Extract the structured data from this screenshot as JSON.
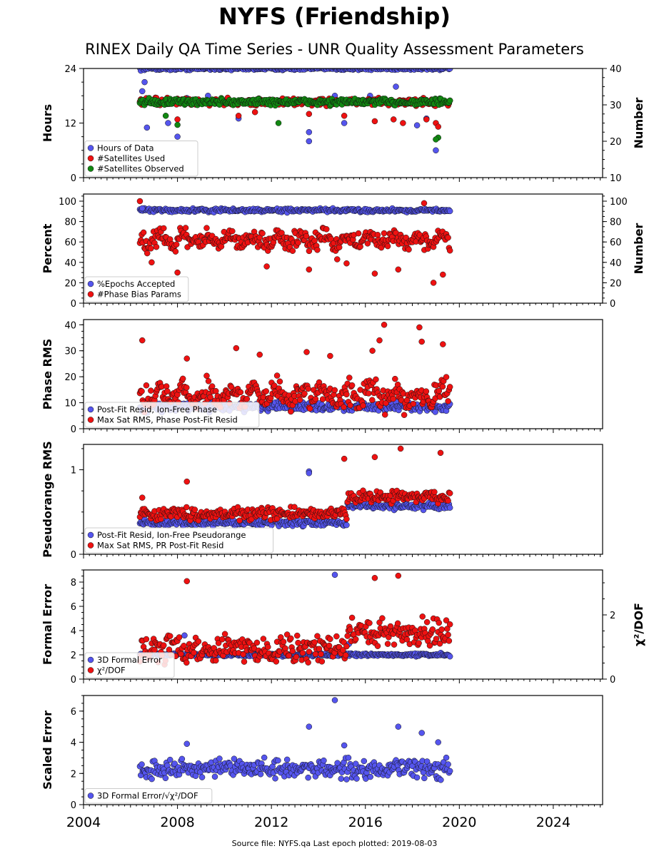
{
  "header": {
    "title": "NYFS (Friendship)",
    "subtitle": "RINEX Daily QA Time Series - UNR Quality Assessment Parameters"
  },
  "footer": {
    "text": "Source file: NYFS.qa Last epoch plotted: 2019-08-03"
  },
  "colors": {
    "blue": "#5555ee",
    "red": "#ee1111",
    "green": "#118811",
    "edge": "#111111"
  },
  "chart_data": [
    {
      "type": "scatter",
      "ylabel": "Hours",
      "y2label": "Number",
      "xlim": [
        2004,
        2026.1
      ],
      "ylim": [
        0,
        24
      ],
      "yticks": [
        "0",
        "12",
        "24"
      ],
      "y2lim": [
        10,
        40
      ],
      "y2ticks": [
        "10",
        "20",
        "30",
        "40"
      ],
      "x_tick_labels_visible": false,
      "legend": "lower-left",
      "legend_entries": [
        "Hours of Data",
        "#Satellites Used",
        "#Satellites Observed"
      ],
      "series": [
        {
          "name": "Hours of Data",
          "color": "blue",
          "axis": "left",
          "x_range": [
            2006.4,
            2019.6
          ],
          "typical": 24.0,
          "spread": 0.3,
          "outliers": [
            [
              2006.4,
              16.5
            ],
            [
              2006.5,
              19.0
            ],
            [
              2006.6,
              21.0
            ],
            [
              2006.7,
              11.0
            ],
            [
              2007.6,
              12.0
            ],
            [
              2008.0,
              9.0
            ],
            [
              2008.4,
              17.5
            ],
            [
              2009.3,
              18.0
            ],
            [
              2010.6,
              13.0
            ],
            [
              2011.4,
              16.5
            ],
            [
              2013.6,
              10.0
            ],
            [
              2013.6,
              8.0
            ],
            [
              2014.7,
              18.0
            ],
            [
              2015.1,
              12.0
            ],
            [
              2016.2,
              18.0
            ],
            [
              2017.3,
              20.0
            ],
            [
              2018.2,
              11.5
            ],
            [
              2018.6,
              13.0
            ],
            [
              2019.0,
              6.0
            ],
            [
              2019.1,
              17.0
            ]
          ]
        },
        {
          "name": "#Satellites Used",
          "color": "red",
          "axis": "right",
          "x_range": [
            2006.4,
            2019.6
          ],
          "typical": 30.8,
          "spread": 0.8,
          "outliers": [
            [
              2008.0,
              26.0
            ],
            [
              2010.6,
              27.0
            ],
            [
              2011.3,
              28.0
            ],
            [
              2013.6,
              27.5
            ],
            [
              2015.1,
              27.0
            ],
            [
              2016.4,
              25.5
            ],
            [
              2017.2,
              26.0
            ],
            [
              2017.6,
              25.0
            ],
            [
              2018.6,
              26.0
            ],
            [
              2019.0,
              25.0
            ],
            [
              2019.1,
              24.0
            ]
          ]
        },
        {
          "name": "#Satellites Observed",
          "color": "green",
          "axis": "right",
          "x_range": [
            2006.4,
            2019.6
          ],
          "typical": 30.8,
          "spread": 0.8,
          "outliers": [
            [
              2007.5,
              27.0
            ],
            [
              2008.0,
              24.5
            ],
            [
              2012.3,
              25.0
            ],
            [
              2019.1,
              21.0
            ],
            [
              2019.0,
              20.5
            ]
          ]
        }
      ]
    },
    {
      "type": "scatter",
      "ylabel": "Percent",
      "y2label": "Number",
      "xlim": [
        2004,
        2026.1
      ],
      "ylim": [
        0,
        107
      ],
      "yticks": [
        "0",
        "20",
        "40",
        "60",
        "80",
        "100"
      ],
      "y2lim": [
        0,
        107
      ],
      "y2ticks": [
        "0",
        "20",
        "40",
        "60",
        "80",
        "100"
      ],
      "x_tick_labels_visible": false,
      "legend": "lower-left",
      "legend_entries": [
        "%Epochs Accepted",
        "#Phase Bias Params"
      ],
      "series": [
        {
          "name": "%Epochs Accepted",
          "color": "blue",
          "axis": "left",
          "x_range": [
            2006.4,
            2019.6
          ],
          "typical": 91.0,
          "spread": 1.5,
          "outliers": [
            [
              2006.5,
              93.0
            ]
          ]
        },
        {
          "name": "#Phase Bias Params",
          "color": "red",
          "axis": "right",
          "x_range": [
            2006.4,
            2019.6
          ],
          "typical": 62.0,
          "spread": 7.0,
          "outliers": [
            [
              2006.4,
              100.0
            ],
            [
              2006.9,
              40.0
            ],
            [
              2008.0,
              30.0
            ],
            [
              2011.8,
              36.0
            ],
            [
              2013.6,
              33.0
            ],
            [
              2014.8,
              43.0
            ],
            [
              2015.2,
              39.0
            ],
            [
              2016.4,
              29.0
            ],
            [
              2017.4,
              33.0
            ],
            [
              2018.5,
              98.0
            ],
            [
              2018.9,
              20.0
            ],
            [
              2019.3,
              28.0
            ]
          ]
        }
      ]
    },
    {
      "type": "scatter",
      "ylabel": "Phase RMS",
      "xlim": [
        2004,
        2026.1
      ],
      "ylim": [
        0,
        42
      ],
      "yticks": [
        "0",
        "10",
        "20",
        "30",
        "40"
      ],
      "x_tick_labels_visible": false,
      "legend": "lower-left",
      "legend_entries": [
        "Post-Fit Resid, Ion-Free Phase",
        "Max Sat RMS, Phase Post-Fit Resid"
      ],
      "series": [
        {
          "name": "Post-Fit Resid, Ion-Free Phase",
          "color": "blue",
          "axis": "left",
          "x_range": [
            2006.4,
            2019.6
          ],
          "typical": 8.5,
          "spread": 1.5,
          "outliers": []
        },
        {
          "name": "Max Sat RMS, Phase Post-Fit Resid",
          "color": "red",
          "axis": "left",
          "x_range": [
            2006.4,
            2019.6
          ],
          "typical": 13.0,
          "spread": 4.0,
          "outliers": [
            [
              2006.5,
              34.0
            ],
            [
              2008.4,
              27.0
            ],
            [
              2010.5,
              31.0
            ],
            [
              2011.5,
              28.5
            ],
            [
              2013.5,
              29.5
            ],
            [
              2014.5,
              28.0
            ],
            [
              2016.3,
              30.0
            ],
            [
              2016.6,
              34.0
            ],
            [
              2016.8,
              40.0
            ],
            [
              2018.3,
              39.0
            ],
            [
              2018.4,
              33.5
            ],
            [
              2019.3,
              32.5
            ]
          ]
        }
      ]
    },
    {
      "type": "scatter",
      "ylabel": "Pseudorange RMS",
      "xlim": [
        2004,
        2026.1
      ],
      "ylim": [
        0,
        1.3
      ],
      "yticks": [
        "0",
        "1"
      ],
      "x_tick_labels_visible": false,
      "legend": "lower-left",
      "legend_entries": [
        "Post-Fit Resid, Ion-Free Pseudorange",
        "Max Sat RMS, PR Post-Fit Resid"
      ],
      "series": [
        {
          "name": "Post-Fit Resid, Ion-Free Pseudorange",
          "color": "blue",
          "axis": "left",
          "x_range": [
            2006.4,
            2019.6
          ],
          "typical": 0.37,
          "spread": 0.03,
          "outliers": [
            [
              2013.6,
              0.98
            ],
            [
              2013.6,
              0.96
            ]
          ]
        },
        {
          "name": "Max Sat RMS, PR Post-Fit Resid",
          "color": "red",
          "axis": "left",
          "x_range": [
            2006.4,
            2019.6
          ],
          "typical": 0.48,
          "spread": 0.06,
          "outliers": [
            [
              2006.5,
              0.67
            ],
            [
              2008.4,
              0.86
            ],
            [
              2015.1,
              1.13
            ],
            [
              2016.4,
              1.15
            ],
            [
              2017.5,
              1.25
            ],
            [
              2019.2,
              1.2
            ]
          ]
        }
      ]
    },
    {
      "type": "scatter",
      "ylabel": "Formal Error",
      "y2label": "χ²/DOF",
      "xlim": [
        2004,
        2026.1
      ],
      "ylim": [
        0,
        9
      ],
      "yticks": [
        "0",
        "2",
        "4",
        "6",
        "8"
      ],
      "y2lim": [
        0,
        3.4
      ],
      "y2ticks": [
        "0",
        "2"
      ],
      "x_tick_labels_visible": false,
      "legend": "lower-left",
      "legend_entries": [
        "3D Formal Error",
        "χ²/DOF"
      ],
      "series": [
        {
          "name": "3D Formal Error",
          "color": "blue",
          "axis": "left",
          "x_range": [
            2006.4,
            2019.6
          ],
          "typical": 2.0,
          "spread": 0.1,
          "outliers": [
            [
              2008.3,
              3.6
            ],
            [
              2014.7,
              8.6
            ],
            [
              2015.3,
              2.9
            ]
          ]
        },
        {
          "name": "χ²/DOF",
          "color": "red",
          "axis": "right",
          "x_range": [
            2006.4,
            2019.6
          ],
          "typical": 0.95,
          "spread": 0.35,
          "outliers": [
            [
              2008.4,
              3.05
            ],
            [
              2016.4,
              3.15
            ],
            [
              2017.4,
              3.22
            ]
          ]
        }
      ]
    },
    {
      "type": "scatter",
      "ylabel": "Scaled Error",
      "xlim": [
        2004,
        2026.1
      ],
      "ylim": [
        0,
        7
      ],
      "yticks": [
        "0",
        "2",
        "4",
        "6"
      ],
      "xticks": [
        "2004",
        "2008",
        "2012",
        "2016",
        "2020",
        "2024"
      ],
      "x_tick_labels_visible": true,
      "legend": "lower-left",
      "legend_entries": [
        "3D Formal Error/√χ²/DOF"
      ],
      "series": [
        {
          "name": "3D Formal Error/√χ²/DOF",
          "color": "blue",
          "axis": "left",
          "x_range": [
            2006.4,
            2019.6
          ],
          "typical": 2.3,
          "spread": 0.5,
          "outliers": [
            [
              2008.4,
              3.9
            ],
            [
              2013.6,
              5.0
            ],
            [
              2014.7,
              6.7
            ],
            [
              2015.1,
              3.8
            ],
            [
              2017.4,
              5.0
            ],
            [
              2018.4,
              4.6
            ],
            [
              2019.1,
              4.0
            ]
          ]
        }
      ]
    }
  ]
}
